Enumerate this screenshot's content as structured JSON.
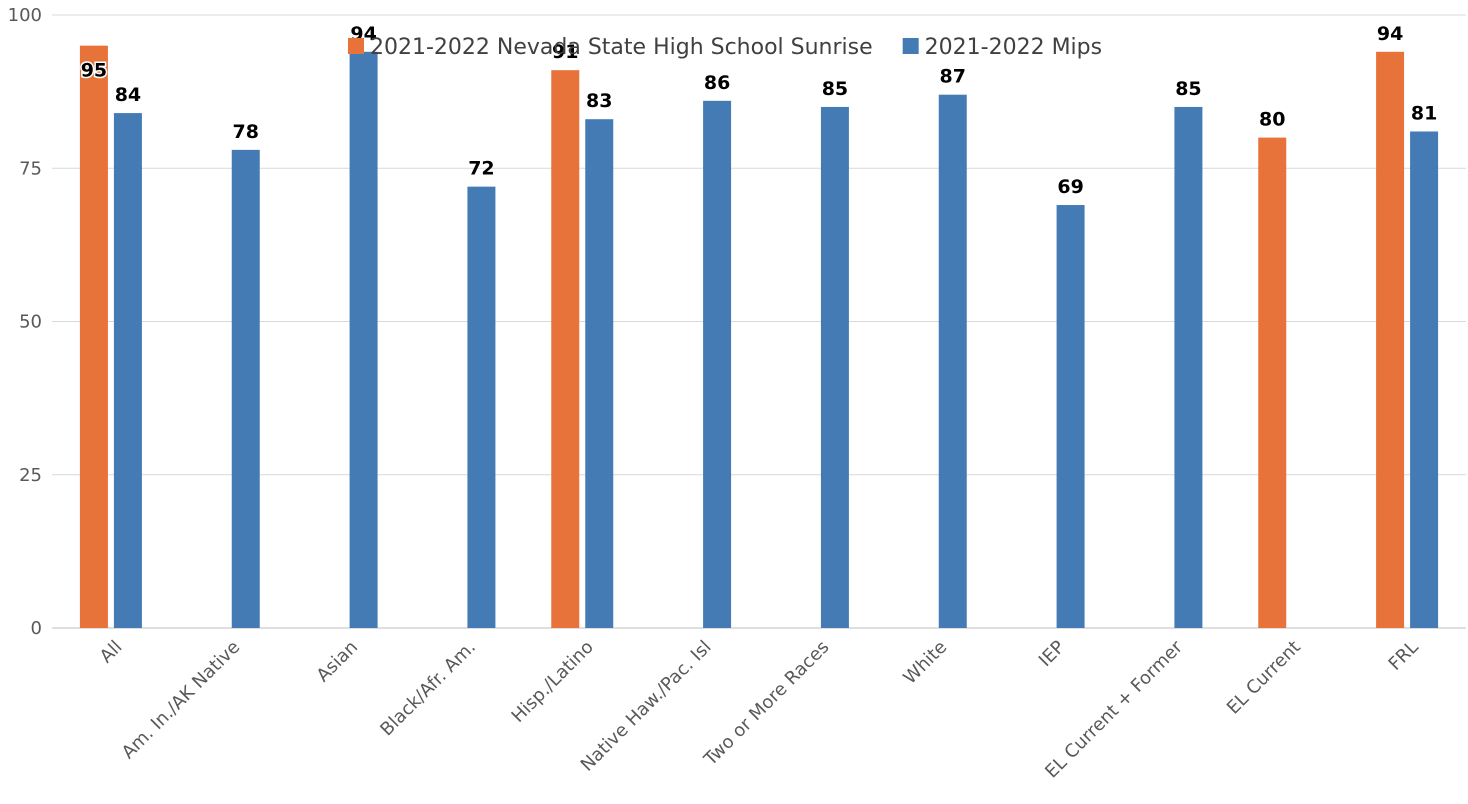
{
  "chart_data": {
    "type": "bar",
    "title": "",
    "xlabel": "",
    "ylabel": "",
    "ylim": [
      0,
      100
    ],
    "yticks": [
      0,
      25,
      50,
      75,
      100
    ],
    "grid": true,
    "legend_position": "top",
    "categories": [
      "All",
      "Am. In./AK Native",
      "Asian",
      "Black/Afr. Am.",
      "Hisp./Latino",
      "Native Haw./Pac. Isl",
      "Two or More Races",
      "White",
      "IEP",
      "EL Current + Former",
      "EL Current",
      "FRL"
    ],
    "series": [
      {
        "name": "2021-2022 Nevada State High School Sunrise",
        "color": "#E8733A",
        "values": [
          95,
          null,
          null,
          null,
          91,
          null,
          null,
          null,
          null,
          null,
          80,
          94
        ]
      },
      {
        "name": "2021-2022 Mips",
        "color": "#447BB4",
        "values": [
          84,
          78,
          94,
          72,
          83,
          86,
          85,
          87,
          69,
          85,
          null,
          81
        ]
      }
    ]
  }
}
